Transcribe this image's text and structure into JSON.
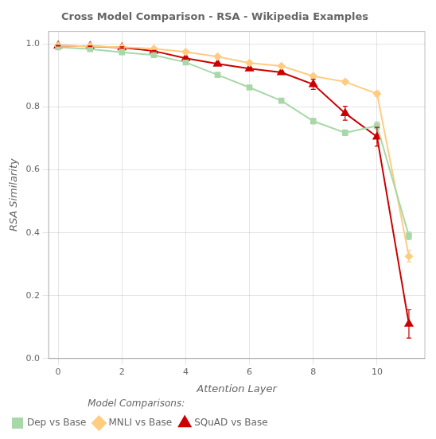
{
  "chart_data": {
    "type": "line",
    "title": "Cross Model Comparison - RSA - Wikipedia Examples",
    "x_label": "Attention Layer",
    "y_label": "RSA Similarity",
    "xlim": [
      -0.3,
      11.5
    ],
    "ylim": [
      0,
      1.04
    ],
    "xticks": [
      0,
      2,
      4,
      6,
      8,
      10
    ],
    "yticks": [
      {
        "value": 0,
        "label": "0.0"
      },
      0.2,
      0.4,
      0.6,
      0.8,
      {
        "value": 1.0,
        "label": "1.0"
      }
    ],
    "grid": true,
    "legend": "lower left",
    "legend_title": "Model Comparisons:",
    "series": [
      {
        "name": "Dep vs Base",
        "color": "#a8d8a8",
        "marker": "square",
        "x": [
          0,
          1,
          2,
          3,
          4,
          5,
          6,
          7,
          8,
          9,
          10,
          11
        ],
        "values": [
          0.99,
          0.984,
          0.974,
          0.965,
          0.942,
          0.902,
          0.862,
          0.82,
          0.755,
          0.718,
          0.74,
          0.39
        ],
        "errors": [
          0.003,
          0.003,
          0.003,
          0.003,
          0.004,
          0.005,
          0.005,
          0.006,
          0.009,
          0.009,
          0.012,
          0.012
        ]
      },
      {
        "name": "MNLI vs Base",
        "color": "#ffcc80",
        "marker": "diamond",
        "x": [
          0,
          1,
          2,
          3,
          4,
          5,
          6,
          7,
          8,
          9,
          10,
          11
        ],
        "values": [
          0.995,
          0.993,
          0.99,
          0.985,
          0.975,
          0.96,
          0.94,
          0.93,
          0.898,
          0.88,
          0.842,
          0.325
        ],
        "errors": [
          0.001,
          0.001,
          0.002,
          0.002,
          0.003,
          0.003,
          0.004,
          0.004,
          0.005,
          0.006,
          0.008,
          0.018
        ]
      },
      {
        "name": "SQuAD vs Base",
        "color": "#cc0000",
        "marker": "triangle",
        "x": [
          0,
          1,
          2,
          3,
          4,
          5,
          6,
          7,
          8,
          9,
          10,
          11
        ],
        "values": [
          0.995,
          0.993,
          0.989,
          0.978,
          0.955,
          0.937,
          0.922,
          0.91,
          0.872,
          0.78,
          0.705,
          0.11
        ],
        "errors": [
          0.001,
          0.001,
          0.002,
          0.002,
          0.003,
          0.003,
          0.003,
          0.004,
          0.016,
          0.022,
          0.03,
          0.045
        ]
      }
    ]
  }
}
